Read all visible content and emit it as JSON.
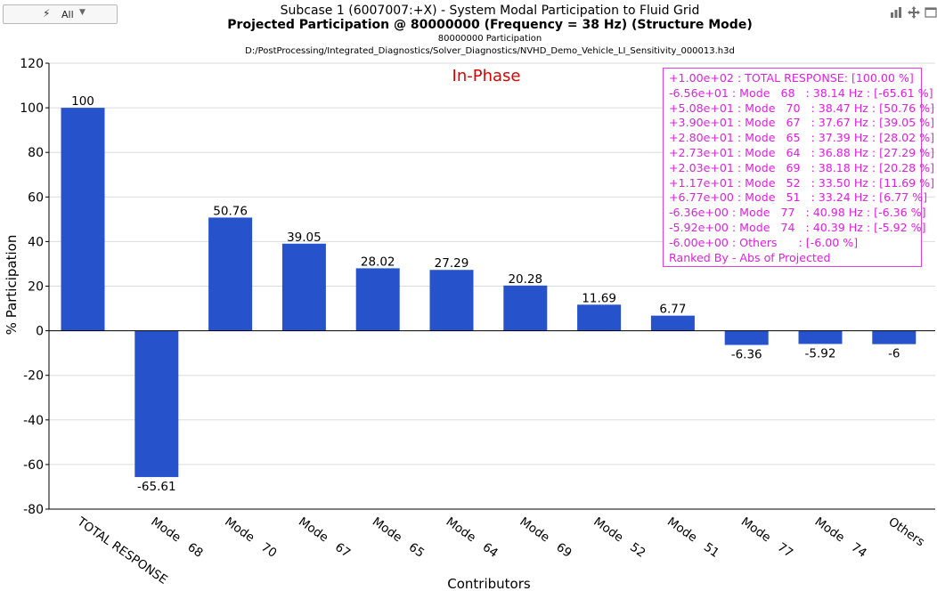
{
  "toolbar": {
    "filter_value": "All",
    "icons": [
      "bolt-icon",
      "chevron-down-icon",
      "bar-chart-icon",
      "move-icon",
      "window-icon"
    ]
  },
  "header": {
    "title": "Subcase 1 (6007007:+X) - System Modal Participation to Fluid Grid",
    "subtitle": "Projected Participation @ 80000000 (Frequency = 38 Hz) (Structure Mode)",
    "subtitle2": "80000000 Participation",
    "filepath": "D:/PostProcessing/Integrated_Diagnostics/Solver_Diagnostics/NVHD_Demo_Vehicle_LI_Sensitivity_000013.h3d"
  },
  "legend": {
    "lines": [
      "+1.00e+02 : TOTAL RESPONSE: [100.00 %]",
      "-6.56e+01 : Mode   68   : 38.14 Hz : [-65.61 %]",
      "+5.08e+01 : Mode   70   : 38.47 Hz : [50.76 %]",
      "+3.90e+01 : Mode   67   : 37.67 Hz : [39.05 %]",
      "+2.80e+01 : Mode   65   : 37.39 Hz : [28.02 %]",
      "+2.73e+01 : Mode   64   : 36.88 Hz : [27.29 %]",
      "+2.03e+01 : Mode   69   : 38.18 Hz : [20.28 %]",
      "+1.17e+01 : Mode   52   : 33.50 Hz : [11.69 %]",
      "+6.77e+00 : Mode   51   : 33.24 Hz : [6.77 %]",
      "-6.36e+00 : Mode   77   : 40.98 Hz : [-6.36 %]",
      "-5.92e+00 : Mode   74   : 40.39 Hz : [-5.92 %]",
      "-6.00e+00 : Others      : [-6.00 %]",
      "Ranked By - Abs of Projected"
    ]
  },
  "chart_data": {
    "type": "bar",
    "annotation": "In-Phase",
    "categories": [
      [
        "TOTAL RESPONSE"
      ],
      [
        "Mode",
        "68"
      ],
      [
        "Mode",
        "70"
      ],
      [
        "Mode",
        "67"
      ],
      [
        "Mode",
        "65"
      ],
      [
        "Mode",
        "64"
      ],
      [
        "Mode",
        "69"
      ],
      [
        "Mode",
        "52"
      ],
      [
        "Mode",
        "51"
      ],
      [
        "Mode",
        "77"
      ],
      [
        "Mode",
        "74"
      ],
      [
        "Others"
      ]
    ],
    "values": [
      100,
      -65.61,
      50.76,
      39.05,
      28.02,
      27.29,
      20.28,
      11.69,
      6.77,
      -6.36,
      -5.92,
      -6
    ],
    "value_labels": [
      "100",
      "-65.61",
      "50.76",
      "39.05",
      "28.02",
      "27.29",
      "20.28",
      "11.69",
      "6.77",
      "-6.36",
      "-5.92",
      "-6"
    ],
    "xlabel": "Contributors",
    "ylabel": "% Participation",
    "ylim": [
      -80,
      120
    ],
    "yticks": [
      -80,
      -60,
      -40,
      -20,
      0,
      20,
      40,
      60,
      80,
      100,
      120
    ],
    "grid": true,
    "legend_position": "top-right",
    "colors": {
      "bar": "#2653cc",
      "legend": "#e020e0",
      "annotation": "#e00000",
      "grid": "#dcdcdc"
    }
  }
}
